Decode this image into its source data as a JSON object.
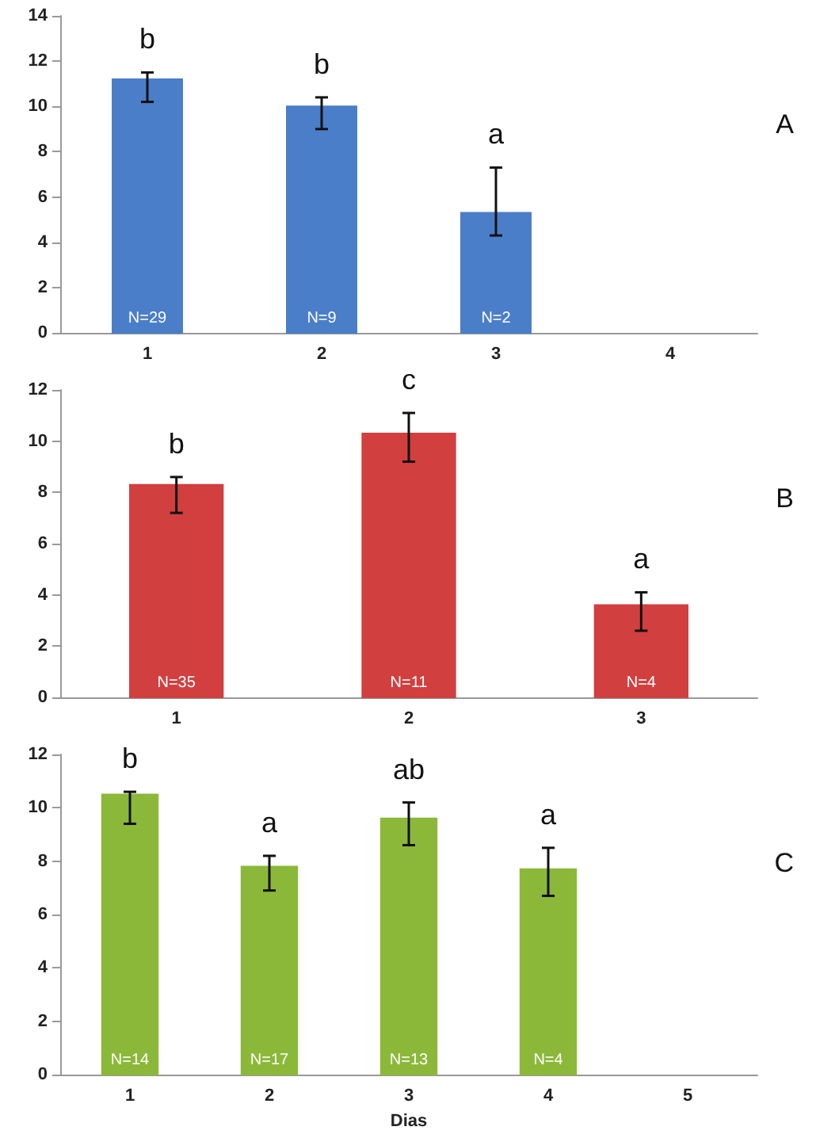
{
  "chart_data": [
    {
      "type": "bar",
      "categories": [
        "1",
        "2",
        "3",
        "4"
      ],
      "color": "#4a7ec8",
      "values": [
        11.2,
        10.0,
        5.3,
        null
      ],
      "errors": [
        [
          10.2,
          11.5
        ],
        [
          9.0,
          10.4
        ],
        [
          4.3,
          7.3
        ],
        null
      ],
      "ylim": [
        0,
        14
      ],
      "yticks": [
        0,
        2,
        4,
        6,
        8,
        10,
        12,
        14
      ],
      "annotations": [
        "A",
        {
          "text": "b",
          "x": "1",
          "y": 11.5
        },
        {
          "text": "b",
          "x": "2",
          "y": 10.4
        },
        {
          "text": "a",
          "x": "3",
          "y": 7.3
        },
        {
          "text": "N=29",
          "x": "1",
          "y": 0
        },
        {
          "text": "N=9",
          "x": "2",
          "y": 0
        },
        {
          "text": "N=2",
          "x": "3",
          "y": 0
        }
      ]
    },
    {
      "type": "bar",
      "categories": [
        "1",
        "2",
        "3"
      ],
      "color": "#d13f3f",
      "values": [
        8.3,
        10.3,
        3.6
      ],
      "errors": [
        [
          7.2,
          8.6
        ],
        [
          9.2,
          11.1
        ],
        [
          2.6,
          4.1
        ]
      ],
      "ylim": [
        0,
        12
      ],
      "yticks": [
        0,
        2,
        4,
        6,
        8,
        10,
        12
      ],
      "annotations": [
        "B",
        {
          "text": "b",
          "x": "1",
          "y": 8.6
        },
        {
          "text": "c",
          "x": "2",
          "y": 11.1
        },
        {
          "text": "a",
          "x": "3",
          "y": 4.1
        },
        {
          "text": "N=35",
          "x": "1",
          "y": 0
        },
        {
          "text": "N=11",
          "x": "2",
          "y": 0
        },
        {
          "text": "N=4",
          "x": "3",
          "y": 0
        }
      ]
    },
    {
      "type": "bar",
      "categories": [
        "1",
        "2",
        "3",
        "4",
        "5"
      ],
      "color": "#8cb83a",
      "values": [
        10.5,
        7.8,
        9.6,
        7.7,
        null
      ],
      "errors": [
        [
          9.4,
          10.6
        ],
        [
          6.9,
          8.2
        ],
        [
          8.6,
          10.2
        ],
        [
          6.7,
          8.5
        ],
        null
      ],
      "ylim": [
        0,
        12
      ],
      "yticks": [
        0,
        2,
        4,
        6,
        8,
        10,
        12
      ],
      "xlabel": "Dias",
      "annotations": [
        "C",
        {
          "text": "b",
          "x": "1",
          "y": 10.6
        },
        {
          "text": "a",
          "x": "2",
          "y": 8.2
        },
        {
          "text": "ab",
          "x": "3",
          "y": 10.2
        },
        {
          "text": "a",
          "x": "4",
          "y": 8.5
        },
        {
          "text": "N=14",
          "x": "1",
          "y": 0
        },
        {
          "text": "N=17",
          "x": "2",
          "y": 0
        },
        {
          "text": "N=13",
          "x": "3",
          "y": 0
        },
        {
          "text": "N=4",
          "x": "4",
          "y": 0
        }
      ]
    }
  ]
}
